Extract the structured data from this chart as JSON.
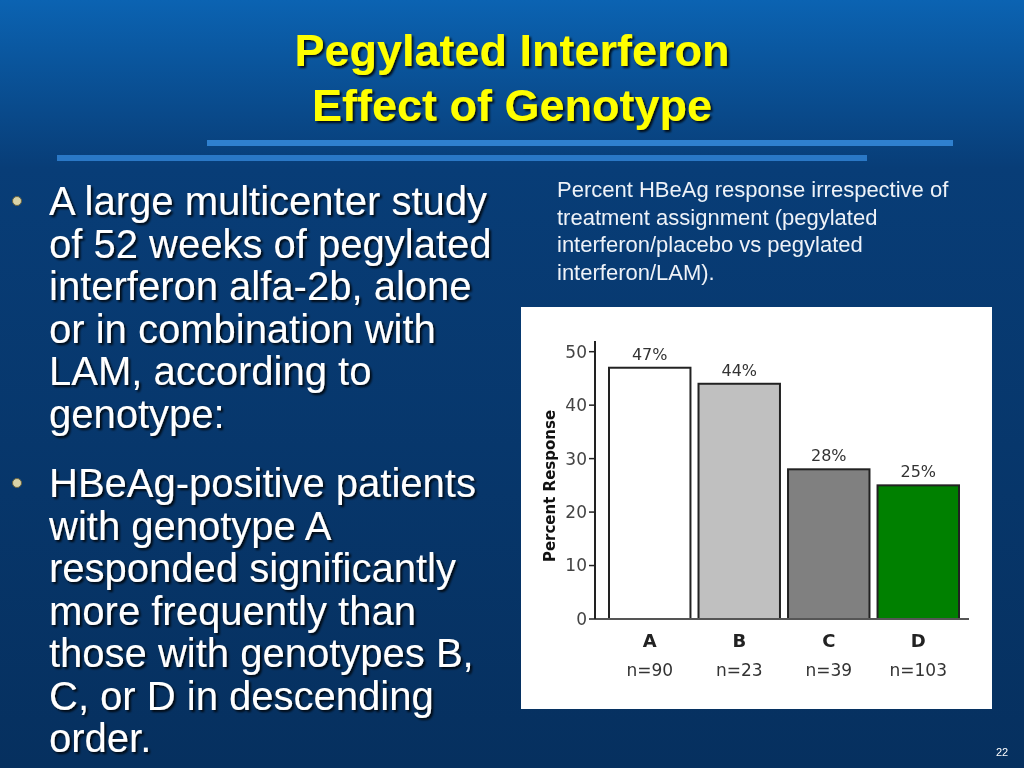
{
  "chart_data": {
    "type": "bar",
    "title": "Pegylated Interferon\nEffect of Genotype",
    "subtitle": "Percent HBeAg response irrespective of treatment assignment (pegylated interferon/placebo vs pegylated interferon/LAM).",
    "ylabel": "Percent Response",
    "categories": [
      "A",
      "B",
      "C",
      "D"
    ],
    "values": [
      47,
      44,
      28,
      25
    ],
    "colors": [
      "#ffffff",
      "#c0c0c0",
      "#808080",
      "#008000"
    ],
    "value_labels": [
      "47%",
      "44%",
      "28%",
      "25%"
    ],
    "ylim": [
      0,
      52
    ],
    "yticks": [
      0,
      10,
      20,
      30,
      40,
      50
    ],
    "annotations": [
      "A large multicenter study of 52 weeks of pegylated interferon alfa-2b, alone or in combination with LAM, according to genotype:",
      "HBeAg-positive patients with genotype A responded significantly more frequently than those with genotypes B, C, or D in descending order.",
      "n=90",
      "n=23",
      "n=39",
      "n=103",
      "22"
    ]
  }
}
